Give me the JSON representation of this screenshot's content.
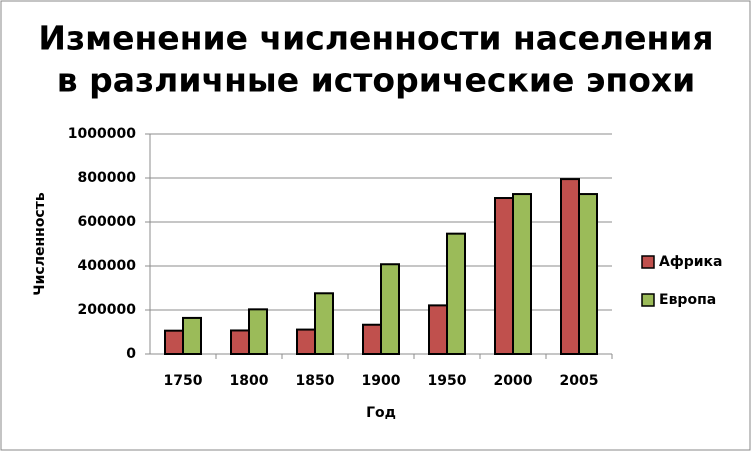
{
  "chart_data": {
    "type": "bar",
    "title": [
      "Изменение численности населения",
      "в различные исторические эпохи"
    ],
    "x_label": "Год",
    "y_label": "Численность",
    "categories": [
      "1750",
      "1800",
      "1850",
      "1900",
      "1950",
      "2000",
      "2005"
    ],
    "series": [
      {
        "name": "Африка",
        "color": "#c0504d",
        "values": [
          106000,
          107000,
          111000,
          133000,
          221000,
          709000,
          795000
        ]
      },
      {
        "name": "Европа",
        "color": "#9bbb59",
        "values": [
          164000,
          203000,
          276000,
          408000,
          547000,
          727000,
          727000
        ]
      }
    ],
    "ylim": [
      0,
      1000000
    ],
    "yticks": [
      0,
      200000,
      400000,
      600000,
      800000,
      1000000
    ],
    "grid": true,
    "legend": "right"
  }
}
